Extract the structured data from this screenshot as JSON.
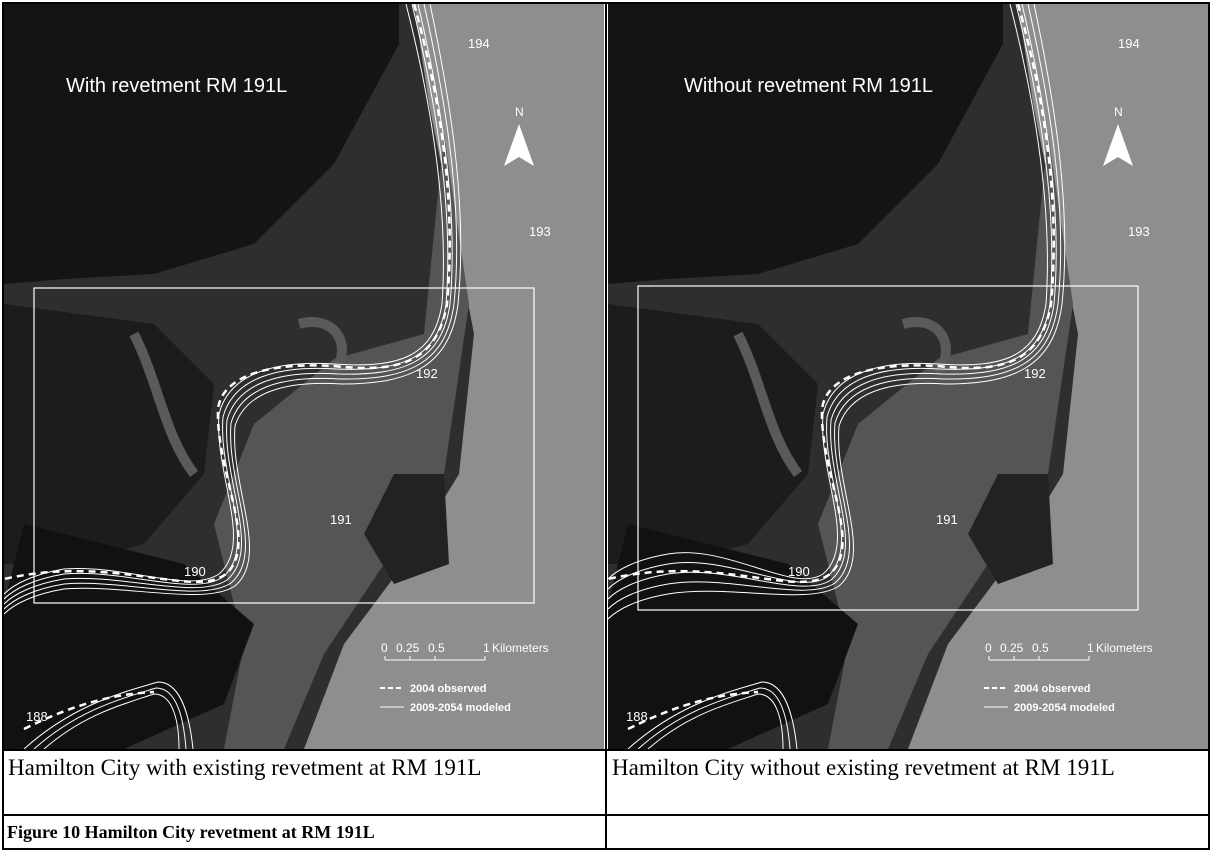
{
  "panels": [
    {
      "map_title": "With revetment RM 191L",
      "caption": "Hamilton City with existing revetment at RM 191L"
    },
    {
      "map_title": "Without revetment RM 191L",
      "caption": "Hamilton City without existing revetment at RM 191L"
    }
  ],
  "river_miles": [
    "194",
    "193",
    "192",
    "191",
    "190",
    "188"
  ],
  "north_label": "N",
  "scale": {
    "ticks": [
      "0",
      "0.25",
      "0.5",
      "1"
    ],
    "unit": "Kilometers"
  },
  "legend": {
    "observed": "2004 observed",
    "modeled": "2009-2054 modeled"
  },
  "figure_caption": "Figure 10 Hamilton City revetment at RM 191L",
  "colors": {
    "background_dark": "#141414",
    "floodplain": "#555555",
    "upland": "#8e8e8e",
    "channel_lines": "#ffffff"
  }
}
